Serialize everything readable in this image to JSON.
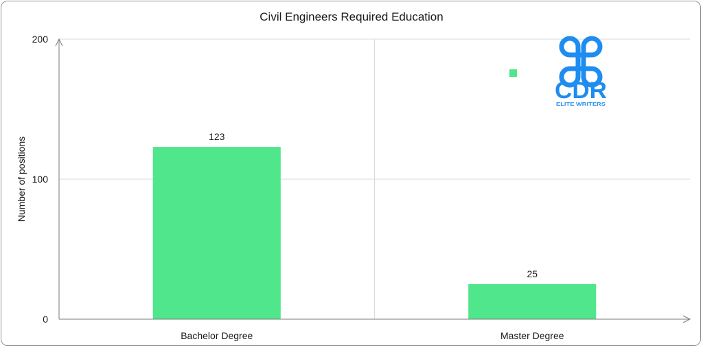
{
  "chart_data": {
    "type": "bar",
    "title": "Civil Engineers Required Education",
    "xlabel": "",
    "ylabel": "Number of positions",
    "categories": [
      "Bachelor Degree",
      "Master Degree"
    ],
    "values": [
      123,
      25
    ],
    "data_labels": [
      "123",
      "25"
    ],
    "ylim": [
      0,
      200
    ],
    "yticks": [
      0,
      100,
      200
    ],
    "ytick_labels": [
      "0",
      "100",
      "200"
    ],
    "grid": true,
    "legend": "top-right",
    "bar_color": "#50e68c"
  },
  "logo": {
    "text": "CDR",
    "subtext": "ELITE WRITERS",
    "color": "#1e8cf0"
  }
}
